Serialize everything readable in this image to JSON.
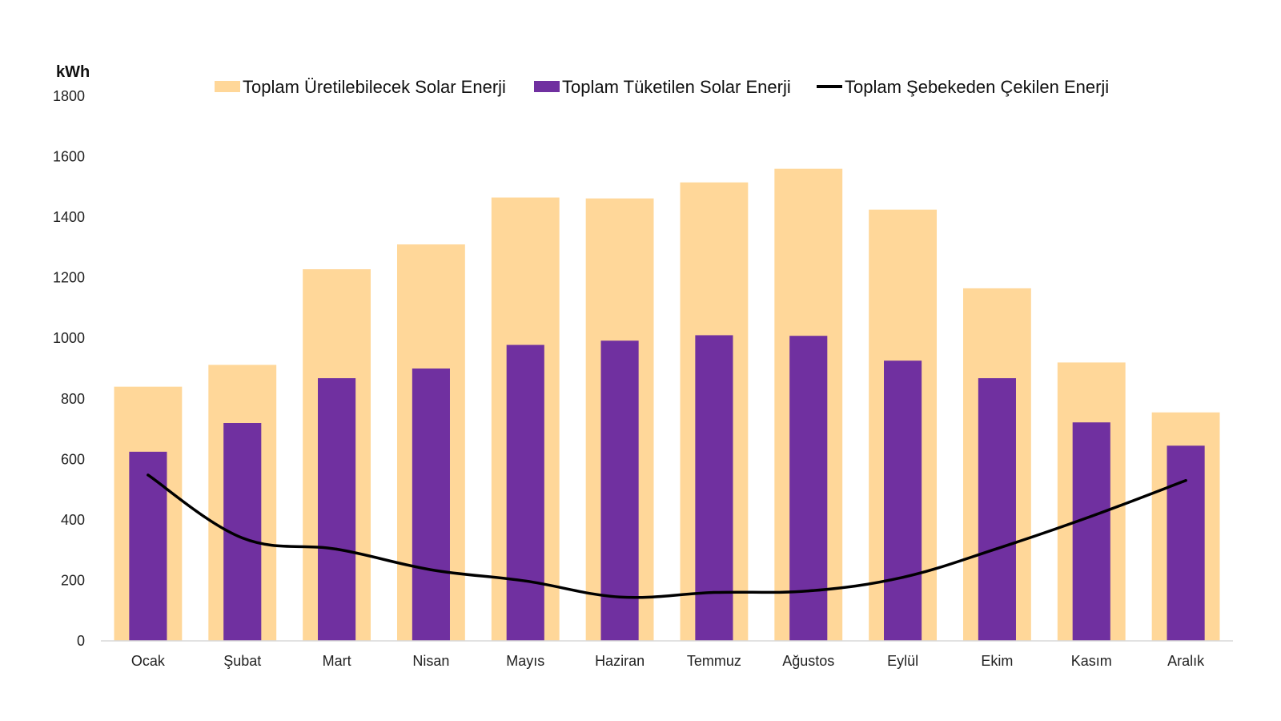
{
  "chart_data": {
    "type": "bar",
    "unit_label": "kWh",
    "categories": [
      "Ocak",
      "Şubat",
      "Mart",
      "Nisan",
      "Mayıs",
      "Haziran",
      "Temmuz",
      "Ağustos",
      "Eylül",
      "Ekim",
      "Kasım",
      "Aralık"
    ],
    "series": [
      {
        "name": "Toplam Üretilebilecek Solar Enerji",
        "kind": "bar",
        "color": "#FFD799",
        "values": [
          840,
          912,
          1228,
          1310,
          1465,
          1462,
          1515,
          1560,
          1425,
          1165,
          920,
          755
        ]
      },
      {
        "name": "Toplam Tüketilen Solar Enerji",
        "kind": "bar",
        "color": "#7030A0",
        "values": [
          625,
          720,
          868,
          900,
          978,
          992,
          1010,
          1008,
          926,
          868,
          722,
          645
        ]
      },
      {
        "name": "Toplam Şebekeden Çekilen Enerji",
        "kind": "line",
        "color": "#000000",
        "values": [
          548,
          340,
          303,
          235,
          198,
          145,
          160,
          165,
          210,
          305,
          412,
          530
        ]
      }
    ],
    "ylim": [
      0,
      1800
    ],
    "yticks": [
      "0",
      "200",
      "400",
      "600",
      "800",
      "1000",
      "1200",
      "1400",
      "1600",
      "1800"
    ],
    "grid": false,
    "legend_position": "top"
  }
}
